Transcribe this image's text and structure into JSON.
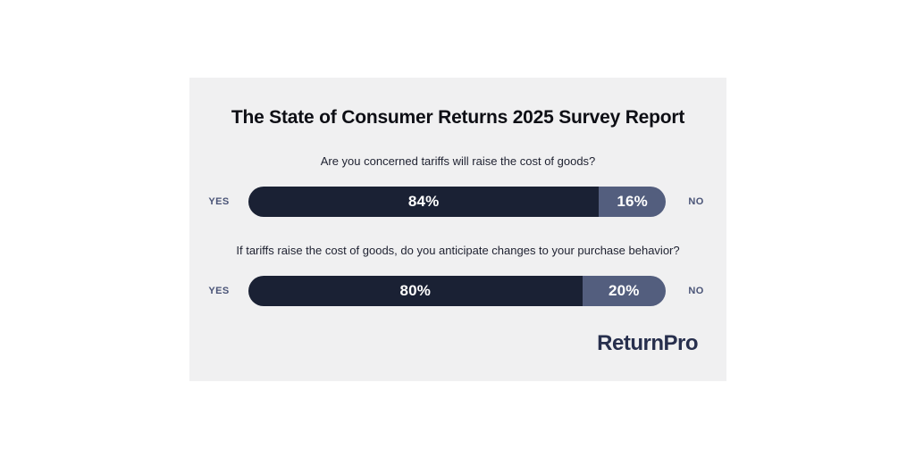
{
  "card": {
    "title": "The State of Consumer Returns 2025 Survey Report"
  },
  "colors": {
    "card_background": "#f0f0f1",
    "title_text": "#0e0f15",
    "question_text": "#1e2130",
    "side_label": "#4a5477",
    "yes_segment": "#1a2134",
    "no_segment": "#535e7e",
    "percent_text": "#ffffff",
    "logo_text": "#272f4d"
  },
  "chart_data": [
    {
      "type": "bar",
      "title": "Are you concerned tariffs will raise the cost of goods?",
      "question": "Are you concerned tariffs will raise the cost of goods?",
      "categories": [
        "YES",
        "NO"
      ],
      "values": [
        84,
        16
      ],
      "labels": [
        "84%",
        "16%"
      ],
      "orientation": "horizontal-stacked",
      "xlim": [
        0,
        100
      ]
    },
    {
      "type": "bar",
      "title": "If tariffs raise the cost of goods, do you anticipate changes to your purchase behavior?",
      "question": "If tariffs raise the cost of goods, do you anticipate changes to your purchase behavior?",
      "categories": [
        "YES",
        "NO"
      ],
      "values": [
        80,
        20
      ],
      "labels": [
        "80%",
        "20%"
      ],
      "orientation": "horizontal-stacked",
      "xlim": [
        0,
        100
      ]
    }
  ],
  "logo": {
    "text": "ReturnPro"
  }
}
